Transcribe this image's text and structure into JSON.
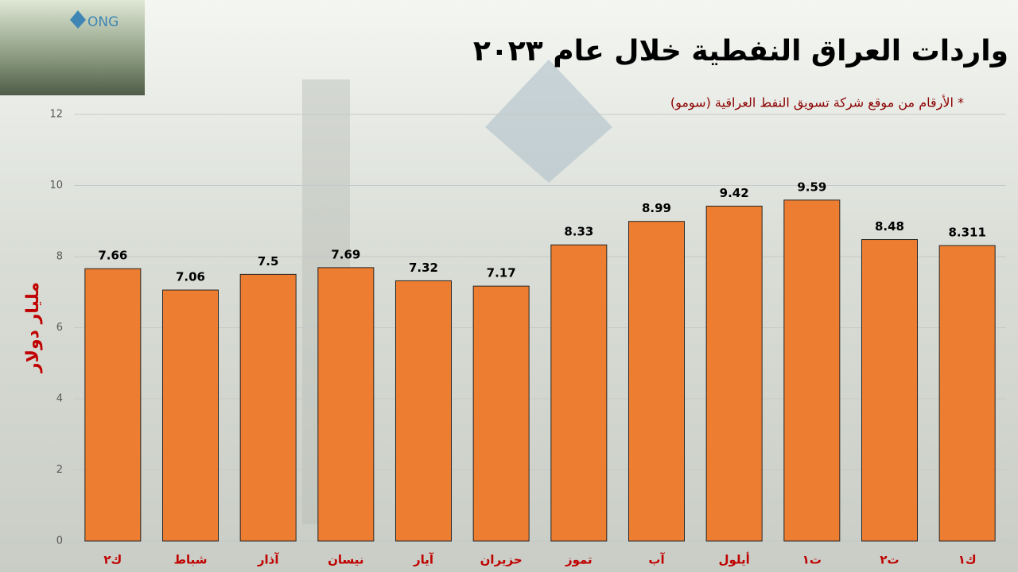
{
  "logo": "ONG",
  "chart_data": {
    "type": "bar",
    "title": "واردات العراق النفطية خلال عام ٢٠٢٣",
    "subtitle": "* الأرقام من موقع شركة تسويق النفط العراقية (سومو)",
    "y_label": "مليار دولار",
    "categories": [
      "ك٢",
      "شباط",
      "آذار",
      "نيسان",
      "آيار",
      "حزيران",
      "تموز",
      "آب",
      "أيلول",
      "ت١",
      "ت٢",
      "ك١"
    ],
    "values": [
      7.66,
      7.06,
      7.5,
      7.69,
      7.32,
      7.17,
      8.33,
      8.99,
      9.42,
      9.59,
      8.48,
      8.311
    ],
    "color": "#ed7d31",
    "ylim": [
      0,
      12
    ],
    "yticks": [
      0,
      2,
      4,
      6,
      8,
      10,
      12
    ],
    "grid": true
  }
}
